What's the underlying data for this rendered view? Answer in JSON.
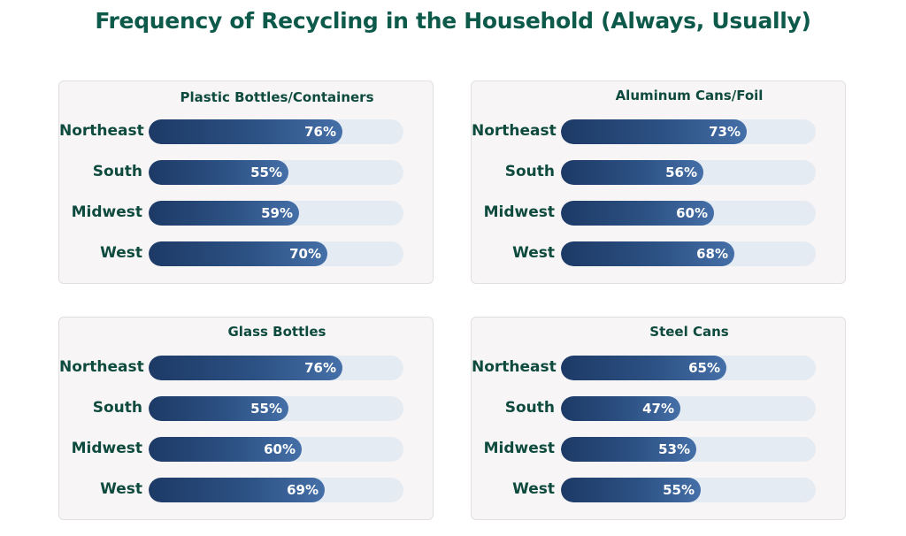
{
  "chart_data": {
    "type": "bar",
    "title": "Frequency of Recycling in the Household (Always, Usually)",
    "categories": [
      "Northeast",
      "South",
      "Midwest",
      "West"
    ],
    "xlim": [
      0,
      100
    ],
    "unit": "%",
    "panels": [
      {
        "title": "Plastic Bottles/Containers",
        "categories": [
          "Northeast",
          "South",
          "Midwest",
          "West"
        ],
        "values": [
          76,
          55,
          59,
          70
        ],
        "labels": [
          "76%",
          "55%",
          "59%",
          "70%"
        ]
      },
      {
        "title": "Aluminum Cans/Foil",
        "categories": [
          "Northeast",
          "South",
          "Midwest",
          "West"
        ],
        "values": [
          73,
          56,
          60,
          68
        ],
        "labels": [
          "73%",
          "56%",
          "60%",
          "68%"
        ]
      },
      {
        "title": "Glass Bottles",
        "categories": [
          "Northeast",
          "South",
          "Midwest",
          "West"
        ],
        "values": [
          76,
          55,
          60,
          69
        ],
        "labels": [
          "76%",
          "55%",
          "60%",
          "69%"
        ]
      },
      {
        "title": "Steel Cans",
        "categories": [
          "Northeast",
          "South",
          "Midwest",
          "West"
        ],
        "values": [
          65,
          47,
          53,
          55
        ],
        "labels": [
          "65%",
          "47%",
          "53%",
          "55%"
        ]
      }
    ]
  },
  "colors": {
    "title": "#0d5a4b",
    "label": "#0e4a3d",
    "bar_start": "#1d3a66",
    "bar_end": "#456fa8",
    "track": "#e5ebf2",
    "panel_bg": "#f7f5f6"
  }
}
